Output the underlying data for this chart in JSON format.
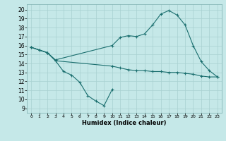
{
  "title": "",
  "xlabel": "Humidex (Indice chaleur)",
  "bg_color": "#c5e8e8",
  "line_color": "#1a6e6e",
  "grid_color": "#a8d0d0",
  "xlim": [
    -0.5,
    23.5
  ],
  "ylim": [
    8.5,
    20.6
  ],
  "yticks": [
    9,
    10,
    11,
    12,
    13,
    14,
    15,
    16,
    17,
    18,
    19,
    20
  ],
  "xticks": [
    0,
    1,
    2,
    3,
    4,
    5,
    6,
    7,
    8,
    9,
    10,
    11,
    12,
    13,
    14,
    15,
    16,
    17,
    18,
    19,
    20,
    21,
    22,
    23
  ],
  "line1_x": [
    0,
    1,
    2,
    3,
    4,
    5,
    6,
    7,
    8,
    9,
    10
  ],
  "line1_y": [
    15.8,
    15.5,
    15.2,
    14.3,
    13.1,
    12.7,
    11.9,
    10.4,
    9.8,
    9.3,
    11.1
  ],
  "line2_x": [
    0,
    1,
    2,
    3,
    10,
    11,
    12,
    13,
    14,
    15,
    16,
    17,
    18,
    19,
    20,
    21,
    22,
    23
  ],
  "line2_y": [
    15.8,
    15.5,
    15.2,
    14.3,
    13.7,
    13.5,
    13.3,
    13.2,
    13.2,
    13.1,
    13.1,
    13.0,
    13.0,
    12.9,
    12.8,
    12.6,
    12.5,
    12.5
  ],
  "line3_x": [
    0,
    2,
    3,
    10,
    11,
    12,
    13,
    14,
    15,
    16,
    17,
    18,
    19,
    20,
    21,
    22,
    23
  ],
  "line3_y": [
    15.8,
    15.2,
    14.4,
    16.0,
    16.9,
    17.1,
    17.0,
    17.3,
    18.3,
    19.5,
    19.9,
    19.4,
    18.3,
    16.0,
    14.2,
    13.2,
    12.5
  ]
}
